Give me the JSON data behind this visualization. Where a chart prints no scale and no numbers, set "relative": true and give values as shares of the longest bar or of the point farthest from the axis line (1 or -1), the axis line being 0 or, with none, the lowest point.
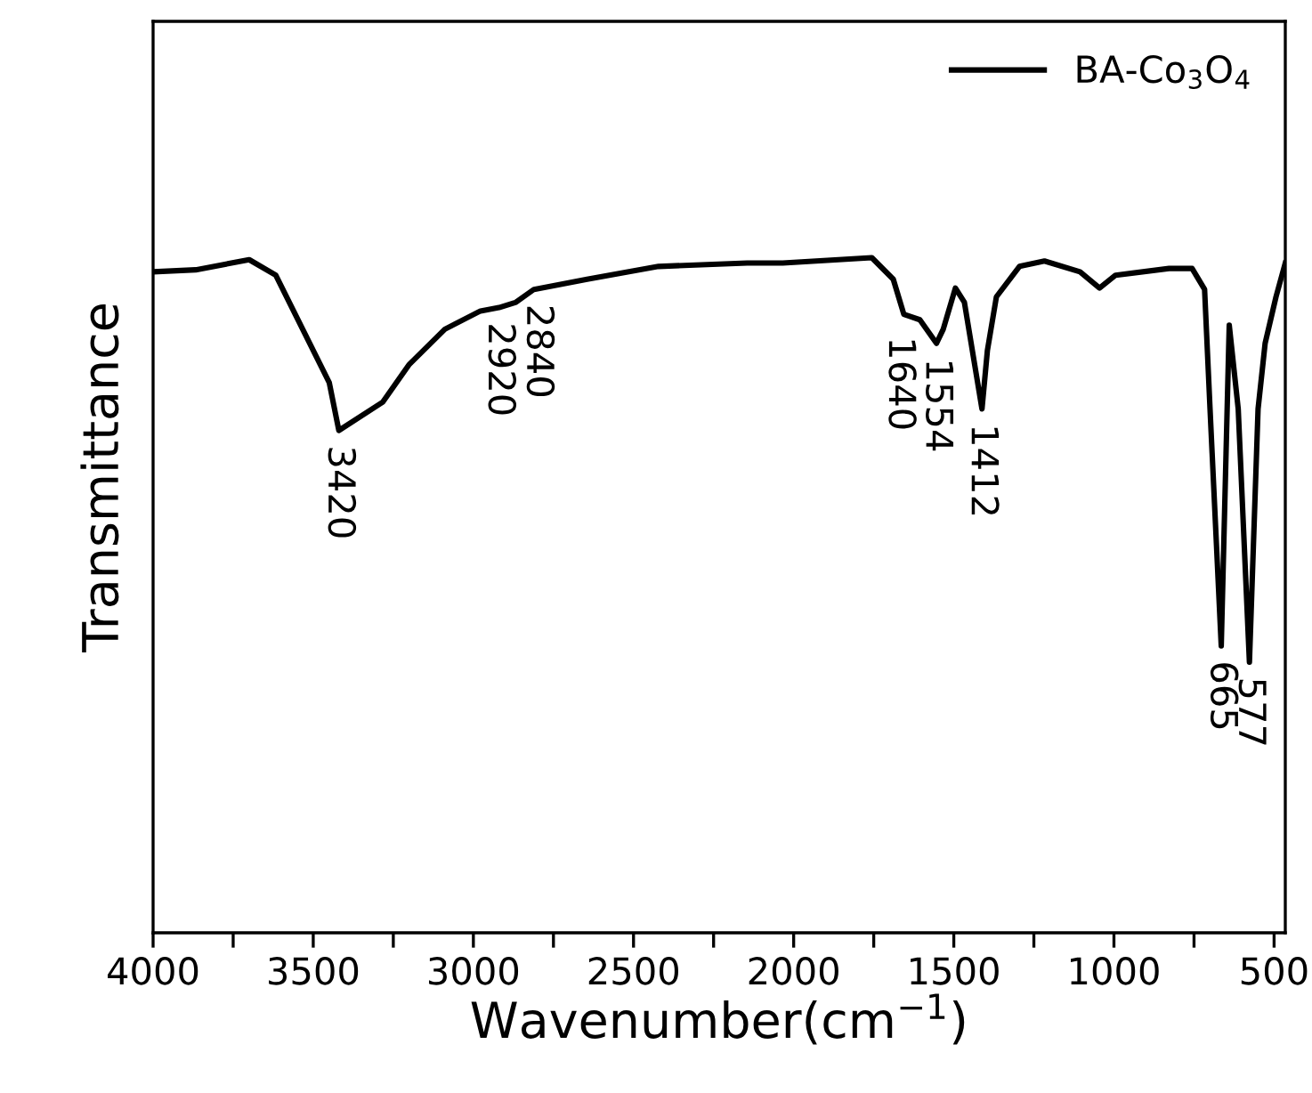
{
  "chart_data": {
    "type": "line",
    "xlabel": "Wavenumber(cm$^{−1}$)",
    "ylabel": "Transmittance",
    "relative": true,
    "legend": "top right",
    "tick_labels": "x",
    "grid": false,
    "line_style": "solid",
    "xlim": [
      4000,
      465
    ],
    "xticks": [
      4000,
      {
        "value": 3750,
        "label": null
      },
      3500,
      {
        "value": 3250,
        "label": null
      },
      3000,
      {
        "value": 2750,
        "label": null
      },
      2500,
      {
        "value": 2250,
        "label": null
      },
      2000,
      {
        "value": 1750,
        "label": null
      },
      1500,
      {
        "value": 1250,
        "label": null
      },
      1000,
      {
        "value": 750,
        "label": null
      },
      500
    ],
    "series": [
      {
        "name": "BA-Co$_{3}$O$_{4}$",
        "color": "#000000",
        "x": [
          4000,
          3867,
          3700,
          3617,
          3533,
          3450,
          3420,
          3283,
          3200,
          3089,
          2978,
          2920,
          2867,
          2811,
          2645,
          2422,
          2145,
          2034,
          1756,
          1689,
          1656,
          1606,
          1554,
          1533,
          1495,
          1467,
          1412,
          1395,
          1367,
          1295,
          1217,
          1106,
          1045,
          995,
          828,
          756,
          717,
          700,
          665,
          640,
          612,
          577,
          550,
          528,
          494,
          465
        ],
        "values": [
          0.979,
          0.982,
          0.997,
          0.974,
          0.894,
          0.815,
          0.744,
          0.786,
          0.842,
          0.894,
          0.921,
          0.926,
          0.934,
          0.953,
          0.968,
          0.987,
          0.992,
          0.992,
          1.0,
          0.968,
          0.916,
          0.908,
          0.873,
          0.894,
          0.955,
          0.934,
          0.776,
          0.863,
          0.942,
          0.987,
          0.995,
          0.979,
          0.955,
          0.974,
          0.984,
          0.984,
          0.953,
          0.776,
          0.425,
          0.9,
          0.776,
          0.401,
          0.776,
          0.873,
          0.942,
          0.992
        ]
      }
    ],
    "annotations": [
      {
        "text": "3420",
        "x": 3420,
        "y": 0.744
      },
      {
        "text": "2920",
        "x": 2920,
        "y": 0.926
      },
      {
        "text": "2840",
        "x": 2800,
        "y": 0.953
      },
      {
        "text": "1640",
        "x": 1670,
        "y": 0.905
      },
      {
        "text": "1554",
        "x": 1554,
        "y": 0.873
      },
      {
        "text": "1412",
        "x": 1412,
        "y": 0.776
      },
      {
        "text": "665",
        "x": 665,
        "y": 0.425
      },
      {
        "text": "577",
        "x": 577,
        "y": 0.401
      }
    ]
  }
}
